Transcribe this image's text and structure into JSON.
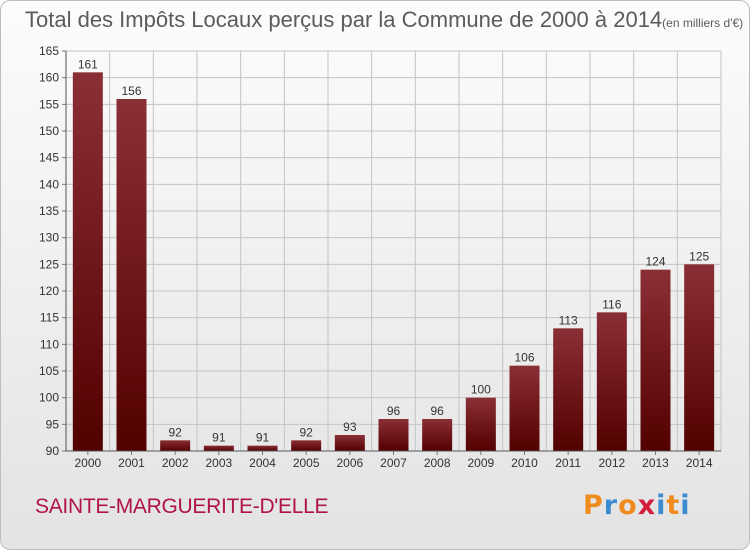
{
  "header": {
    "title": "Total des Impôts Locaux perçus par la Commune de 2000 à 2014",
    "unit": "(en milliers d'€)"
  },
  "commune": "SAINTE-MARGUERITE-D'ELLE",
  "logo": {
    "text": "Proxiti",
    "letter_colors": [
      "#f08c1e",
      "#3c8cd2",
      "#f08c1e",
      "#d21e3c",
      "#3c8cd2",
      "#f08c1e",
      "#3c8cd2"
    ]
  },
  "colors": {
    "bar_top": "#8b2f36",
    "bar_bottom": "#520000",
    "grid": "#c4c4c4",
    "axis_text": "#333333"
  },
  "chart_data": {
    "type": "bar",
    "categories": [
      "2000",
      "2001",
      "2002",
      "2003",
      "2004",
      "2005",
      "2006",
      "2007",
      "2008",
      "2009",
      "2010",
      "2011",
      "2012",
      "2013",
      "2014"
    ],
    "values": [
      161,
      156,
      92,
      91,
      91,
      92,
      93,
      96,
      96,
      100,
      106,
      113,
      116,
      124,
      125
    ],
    "data_labels": [
      "161",
      "156",
      "92",
      "91",
      "91",
      "92",
      "93",
      "96",
      "96",
      "100",
      "106",
      "113",
      "116",
      "124",
      "125"
    ],
    "ylim": [
      90,
      165
    ],
    "yticks": [
      90,
      95,
      100,
      105,
      110,
      115,
      120,
      125,
      130,
      135,
      140,
      145,
      150,
      155,
      160,
      165
    ],
    "grid": true
  }
}
